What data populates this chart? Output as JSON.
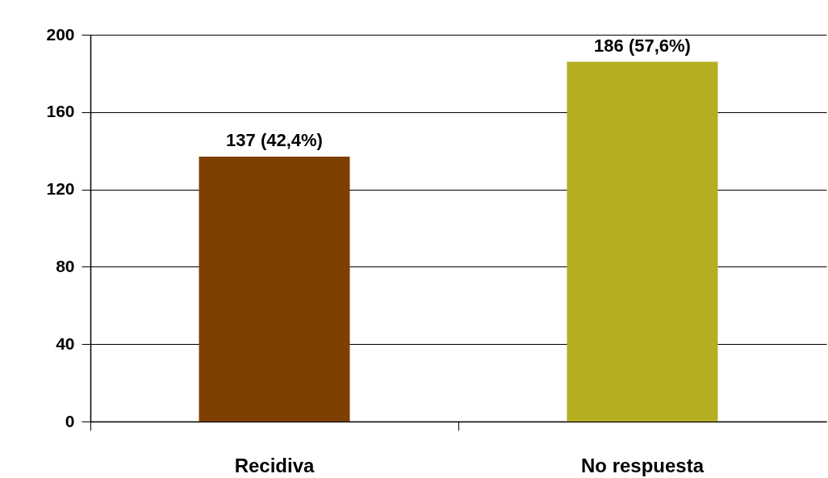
{
  "chart_data": {
    "type": "bar",
    "categories": [
      "Recidiva",
      "No respuesta"
    ],
    "values": [
      137,
      186
    ],
    "colors": [
      "#7f3f00",
      "#b3af21"
    ],
    "ylim": [
      0,
      200
    ],
    "yticks": [
      0,
      40,
      80,
      120,
      160,
      200
    ],
    "grid": "y",
    "value_labels": [
      "137 (42,4%)",
      "186 (57,6%)"
    ]
  }
}
